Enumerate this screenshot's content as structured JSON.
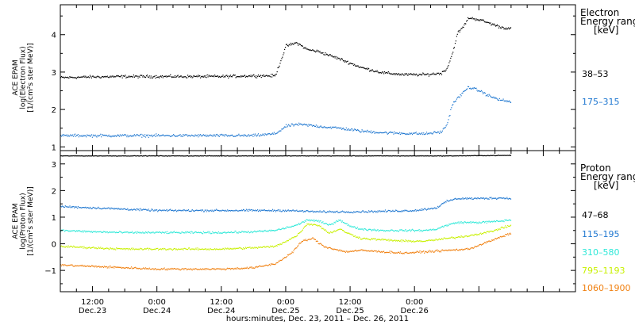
{
  "chart_data": [
    {
      "type": "scatter",
      "name": "electron-panel",
      "ylabel_lines": [
        "ACE EPAM",
        "log(Electron Flux)",
        "[1/(cm²s ster MeV)]"
      ],
      "ylim": [
        0.9,
        4.8
      ],
      "yticks": [
        1,
        2,
        3,
        4
      ],
      "xlim": [
        0,
        96
      ],
      "legend_title_lines": [
        "Electron",
        "Energy ranges",
        "[keV]"
      ],
      "series": [
        {
          "name": "38–53",
          "color": "#000000",
          "x": [
            0,
            6,
            12,
            18,
            24,
            30,
            36,
            40,
            42,
            44,
            46,
            48,
            52,
            56,
            60,
            64,
            68,
            71,
            72,
            73,
            74,
            75,
            76,
            78,
            80,
            82,
            84
          ],
          "y": [
            2.85,
            2.87,
            2.88,
            2.88,
            2.88,
            2.88,
            2.9,
            2.9,
            3.7,
            3.78,
            3.6,
            3.55,
            3.35,
            3.12,
            2.98,
            2.93,
            2.93,
            2.97,
            3.1,
            3.5,
            4.05,
            4.2,
            4.45,
            4.4,
            4.3,
            4.2,
            4.15
          ]
        },
        {
          "name": "175–315",
          "color": "#1f77d0",
          "x": [
            0,
            6,
            12,
            18,
            24,
            30,
            36,
            40,
            42,
            44,
            46,
            50,
            52,
            56,
            60,
            64,
            68,
            71,
            72,
            73,
            74,
            75,
            76,
            78,
            80,
            82,
            84
          ],
          "y": [
            1.3,
            1.3,
            1.3,
            1.3,
            1.3,
            1.3,
            1.3,
            1.35,
            1.55,
            1.6,
            1.58,
            1.52,
            1.5,
            1.42,
            1.38,
            1.36,
            1.35,
            1.4,
            1.6,
            2.15,
            2.3,
            2.45,
            2.6,
            2.5,
            2.35,
            2.25,
            2.2
          ]
        }
      ]
    },
    {
      "type": "scatter",
      "name": "proton-panel",
      "ylabel_lines": [
        "ACE EPAM",
        "log(Proton Flux)",
        "[1/(cm²s ster MeV)]"
      ],
      "ylim": [
        -1.8,
        3.5
      ],
      "yticks": [
        -1,
        0,
        1,
        2,
        3
      ],
      "xlim": [
        0,
        96
      ],
      "legend_title_lines": [
        "Proton",
        "Energy ranges",
        "[keV]"
      ],
      "series": [
        {
          "name": "47–68",
          "color": "#000000",
          "x": [
            0,
            12,
            24,
            36,
            48,
            60,
            72,
            84
          ],
          "y": [
            3.3,
            3.3,
            3.3,
            3.3,
            3.3,
            3.3,
            3.3,
            3.32
          ]
        },
        {
          "name": "115–195",
          "color": "#1f77d0",
          "x": [
            0,
            6,
            12,
            18,
            24,
            30,
            36,
            42,
            48,
            54,
            60,
            66,
            70,
            72,
            74,
            78,
            82,
            84
          ],
          "y": [
            1.4,
            1.35,
            1.3,
            1.25,
            1.25,
            1.25,
            1.25,
            1.25,
            1.2,
            1.2,
            1.22,
            1.25,
            1.35,
            1.6,
            1.7,
            1.7,
            1.72,
            1.7
          ]
        },
        {
          "name": "310–580",
          "color": "#2ee8d8",
          "x": [
            0,
            6,
            12,
            18,
            24,
            30,
            36,
            40,
            44,
            46,
            48,
            50,
            52,
            54,
            56,
            60,
            64,
            68,
            70,
            72,
            74,
            78,
            82,
            84
          ],
          "y": [
            0.5,
            0.45,
            0.42,
            0.42,
            0.42,
            0.42,
            0.45,
            0.5,
            0.7,
            0.9,
            0.85,
            0.7,
            0.9,
            0.65,
            0.55,
            0.5,
            0.5,
            0.5,
            0.55,
            0.7,
            0.8,
            0.8,
            0.85,
            0.9
          ]
        },
        {
          "name": "795–1193",
          "color": "#c8f000",
          "x": [
            0,
            6,
            12,
            18,
            24,
            30,
            36,
            40,
            44,
            46,
            48,
            50,
            52,
            54,
            56,
            60,
            64,
            68,
            72,
            76,
            80,
            84
          ],
          "y": [
            -0.1,
            -0.15,
            -0.2,
            -0.2,
            -0.2,
            -0.2,
            -0.15,
            -0.1,
            0.3,
            0.75,
            0.7,
            0.4,
            0.55,
            0.35,
            0.2,
            0.15,
            0.1,
            0.1,
            0.2,
            0.3,
            0.45,
            0.7
          ]
        },
        {
          "name": "1060–1900",
          "color": "#f08010",
          "x": [
            0,
            6,
            12,
            18,
            24,
            30,
            36,
            40,
            43,
            45,
            47,
            49,
            51,
            53,
            56,
            60,
            64,
            68,
            72,
            76,
            80,
            84
          ],
          "y": [
            -0.8,
            -0.85,
            -0.9,
            -0.95,
            -0.95,
            -0.95,
            -0.9,
            -0.75,
            -0.35,
            0.1,
            0.2,
            -0.1,
            -0.2,
            -0.3,
            -0.25,
            -0.3,
            -0.35,
            -0.3,
            -0.25,
            -0.2,
            0.1,
            0.4
          ]
        }
      ]
    }
  ],
  "x_axis": {
    "ticks": [
      {
        "x": 6,
        "time": "12:00",
        "day": "Dec.23"
      },
      {
        "x": 18,
        "time": "0:00",
        "day": "Dec.24"
      },
      {
        "x": 30,
        "time": "12:00",
        "day": "Dec.24"
      },
      {
        "x": 42,
        "time": "0:00",
        "day": "Dec.25"
      },
      {
        "x": 54,
        "time": "12:00",
        "day": "Dec.25"
      },
      {
        "x": 66,
        "time": "0:00",
        "day": "Dec.26"
      }
    ],
    "label": "hours:minutes, Dec. 23, 2011 – Dec. 26, 2011"
  }
}
